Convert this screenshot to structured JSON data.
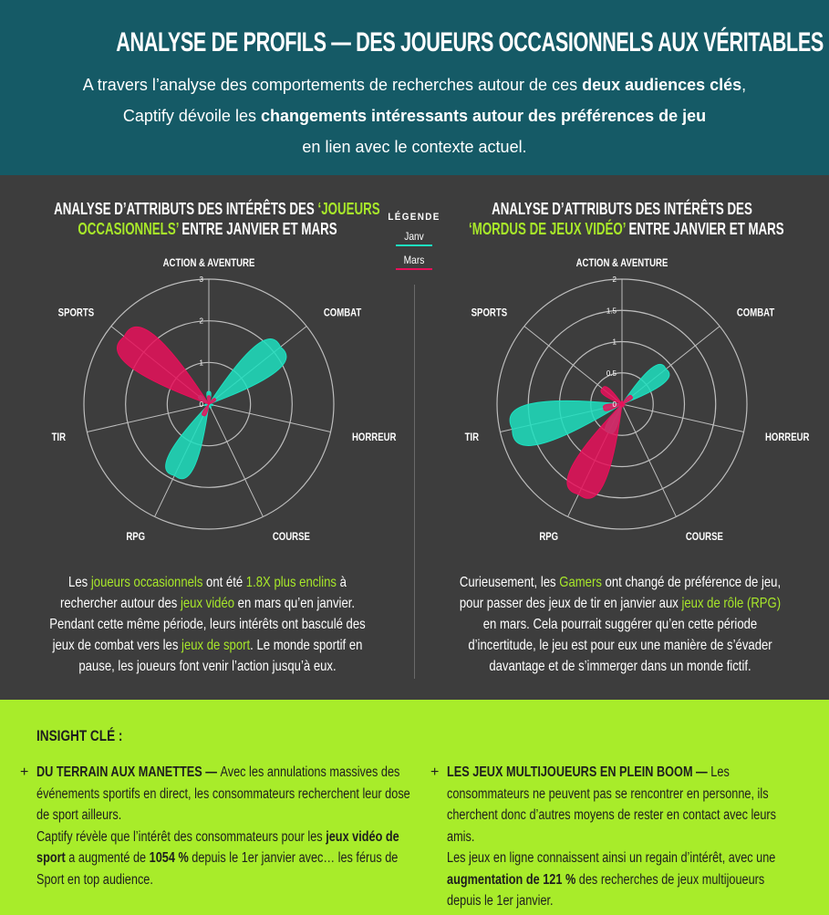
{
  "header": {
    "title": "ANALYSE DE PROFILS — DES JOUEURS OCCASIONNELS AUX VÉRITABLES",
    "intro_1": "A travers l’analyse des comportements de recherches autour de ces ",
    "intro_1b": "deux audiences clés",
    "intro_1c": ",",
    "intro_2": "Captify dévoile les ",
    "intro_2b": "changements intéressants autour des préférences de jeu",
    "intro_3": "en lien avec le contexte actuel."
  },
  "legend": {
    "title": "LÉGENDE",
    "items": [
      {
        "label": "Janv",
        "color": "#1de0c0"
      },
      {
        "label": "Mars",
        "color": "#e8105a"
      }
    ]
  },
  "left_panel": {
    "title_1a": "ANALYSE D’ATTRIBUTS DES INTÉRÊTS DES ",
    "title_1b": "‘JOUEURS",
    "title_2a": "OCCASIONNELS’",
    "title_2b": " ENTRE JANVIER ET MARS",
    "desc": [
      {
        "t": "Les ",
        "h": false
      },
      {
        "t": "joueurs occasionnels",
        "h": true
      },
      {
        "t": " ont été ",
        "h": false
      },
      {
        "t": "1.8X plus enclins",
        "h": true
      },
      {
        "t": " à rechercher autour des ",
        "h": false
      },
      {
        "t": "jeux vidéo",
        "h": true
      },
      {
        "t": " en mars qu’en janvier. Pendant cette même période, leurs intérêts ont basculé des jeux de combat vers les ",
        "h": false
      },
      {
        "t": "jeux de sport",
        "h": true
      },
      {
        "t": ". Le monde sportif en pause, les joueurs font venir l’action jusqu’à eux.",
        "h": false
      }
    ]
  },
  "right_panel": {
    "title_1": "ANALYSE D’ATTRIBUTS DES INTÉRÊTS DES",
    "title_2a": "‘MORDUS DE JEUX VIDÉO’",
    "title_2b": " ENTRE JANVIER ET MARS",
    "desc": [
      {
        "t": "Curieusement, les ",
        "h": false
      },
      {
        "t": "Gamers",
        "h": true
      },
      {
        "t": " ont changé de préférence de jeu, pour passer des jeux de tir en janvier aux ",
        "h": false
      },
      {
        "t": "jeux de rôle (RPG)",
        "h": true
      },
      {
        "t": "  en mars. Cela pourrait suggérer qu’en cette période d’incertitude, le jeu est pour eux une manière de s’évader davantage et de s’immerger dans un monde fictif.",
        "h": false
      }
    ]
  },
  "chart_data": [
    {
      "type": "radar",
      "categories": [
        "ACTION & AVENTURE",
        "COMBAT",
        "HORREUR",
        "COURSE",
        "RPG",
        "TIR",
        "SPORTS"
      ],
      "rlim": [
        0,
        3
      ],
      "ticks": [
        "0",
        "1",
        "2",
        "3"
      ],
      "series": [
        {
          "name": "Janv",
          "color": "#1de0c0",
          "values": [
            0.3,
            2.2,
            0.1,
            0.1,
            1.9,
            0.1,
            0.3
          ]
        },
        {
          "name": "Mars",
          "color": "#e8105a",
          "values": [
            0.2,
            0.2,
            0.0,
            0.0,
            0.3,
            0.0,
            2.6
          ]
        }
      ]
    },
    {
      "type": "radar",
      "categories": [
        "ACTION & AVENTURE",
        "COMBAT",
        "HORREUR",
        "COURSE",
        "RPG",
        "TIR",
        "SPORTS"
      ],
      "rlim": [
        0,
        2
      ],
      "ticks": [
        "0",
        "0.5",
        "1",
        "1.5",
        "2"
      ],
      "series": [
        {
          "name": "Janv",
          "color": "#1de0c0",
          "values": [
            0.05,
            0.9,
            0.05,
            0.05,
            0.5,
            1.8,
            0.05
          ]
        },
        {
          "name": "Mars",
          "color": "#e8105a",
          "values": [
            0.05,
            0.2,
            0.05,
            0.05,
            1.6,
            0.3,
            0.4
          ]
        }
      ]
    }
  ],
  "insight": {
    "title": "INSIGHT CLÉ :",
    "col1": [
      {
        "t": "DU TERRAIN AUX MANETTES — ",
        "b": true
      },
      {
        "t": "Avec les annulations massives des événements sportifs en direct, les consommateurs recherchent leur dose de sport ailleurs.",
        "b": false
      },
      {
        "t": "\nCaptify révèle que l’intérêt des consommateurs pour les ",
        "b": false
      },
      {
        "t": "jeux vidéo de sport",
        "b": true
      },
      {
        "t": " a augmenté de ",
        "b": false
      },
      {
        "t": "1054 %",
        "b": true
      },
      {
        "t": " depuis le 1er janvier avec… les férus de Sport en top audience.",
        "b": false
      }
    ],
    "col2": [
      {
        "t": "LES JEUX MULTIJOUEURS EN PLEIN BOOM — ",
        "b": true
      },
      {
        "t": "Les consommateurs ne peuvent pas se rencontrer en personne, ils cherchent donc d’autres moyens de rester en contact avec leurs amis.",
        "b": false
      },
      {
        "t": "\nLes jeux en ligne connaissent ainsi un regain d’intérêt, avec une ",
        "b": false
      },
      {
        "t": "augmentation de 121 %",
        "b": true
      },
      {
        "t": " des recherches de jeux multijoueurs depuis le 1er janvier.",
        "b": false
      }
    ],
    "plus": "+"
  }
}
